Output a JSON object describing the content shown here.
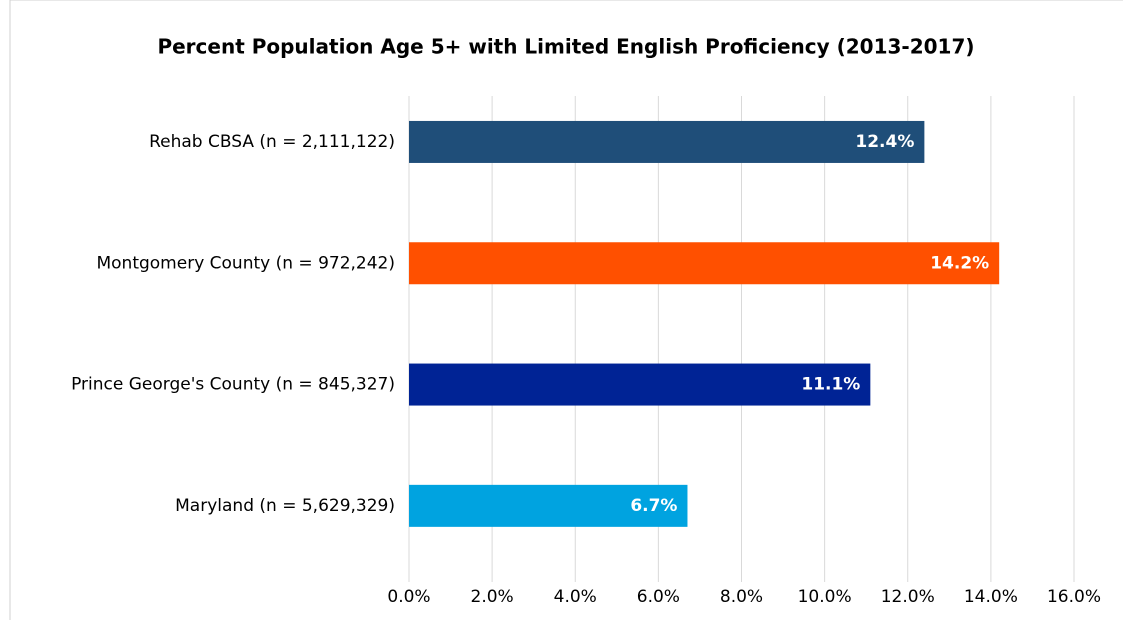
{
  "chart_data": {
    "type": "bar",
    "orientation": "horizontal",
    "title": "Percent Population Age 5+ with Limited English Proficiency (2013-2017)",
    "categories": [
      "Rehab CBSA (n = 2,111,122)",
      "Montgomery County (n = 972,242)",
      "Prince George's County (n = 845,327)",
      "Maryland (n = 5,629,329)"
    ],
    "values": [
      12.4,
      14.2,
      11.1,
      6.7
    ],
    "value_labels": [
      "12.4%",
      "14.2%",
      "11.1%",
      "6.7%"
    ],
    "colors": [
      "#1f4e79",
      "#ff5000",
      "#002395",
      "#00a3e0"
    ],
    "xlim": [
      0,
      16
    ],
    "xticks": [
      {
        "value": 0,
        "label": "0.0%"
      },
      {
        "value": 2,
        "label": "2.0%"
      },
      {
        "value": 4,
        "label": "4.0%"
      },
      {
        "value": 6,
        "label": "6.0%"
      },
      {
        "value": 8,
        "label": "8.0%"
      },
      {
        "value": 10,
        "label": "10.0%"
      },
      {
        "value": 12,
        "label": "12.0%"
      },
      {
        "value": 14,
        "label": "14.0%"
      },
      {
        "value": 16,
        "label": "16.0%"
      }
    ],
    "grid": true
  }
}
